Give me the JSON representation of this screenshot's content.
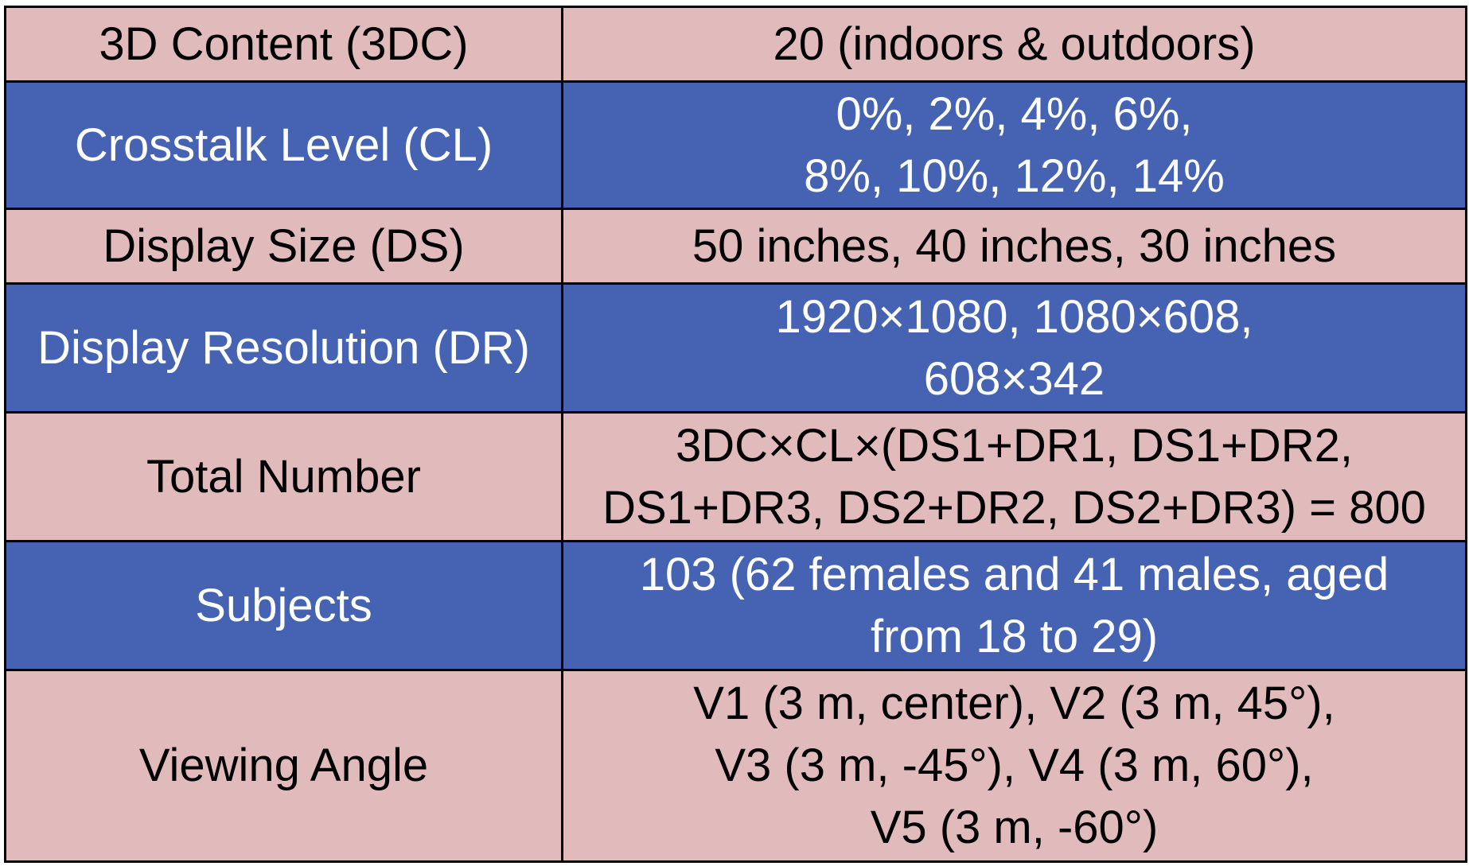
{
  "colors": {
    "pink_row": "#e1bbbb",
    "blue_row": "#4563b2",
    "border": "#000000",
    "pink_text": "#000000",
    "blue_text": "#ffffff"
  },
  "rows": [
    {
      "label": "3D Content (3DC)",
      "value_lines": [
        "20 (indoors & outdoors)"
      ]
    },
    {
      "label": "Crosstalk Level (CL)",
      "value_lines": [
        "0%, 2%, 4%, 6%,",
        "8%, 10%, 12%, 14%"
      ]
    },
    {
      "label": "Display Size (DS)",
      "value_lines": [
        "50 inches, 40 inches, 30 inches"
      ]
    },
    {
      "label": "Display Resolution (DR)",
      "value_lines": [
        "1920×1080, 1080×608,",
        "608×342"
      ]
    },
    {
      "label": "Total Number",
      "value_lines": [
        "3DC×CL×(DS1+DR1, DS1+DR2,",
        "DS1+DR3, DS2+DR2, DS2+DR3) = 800"
      ]
    },
    {
      "label": "Subjects",
      "value_lines": [
        "103 (62 females and 41 males, aged",
        "from 18 to 29)"
      ]
    },
    {
      "label": "Viewing Angle",
      "value_lines": [
        "V1 (3 m, center), V2 (3 m, 45°),",
        "V3 (3 m, -45°), V4 (3 m, 60°),",
        "V5 (3 m, -60°)"
      ]
    }
  ]
}
